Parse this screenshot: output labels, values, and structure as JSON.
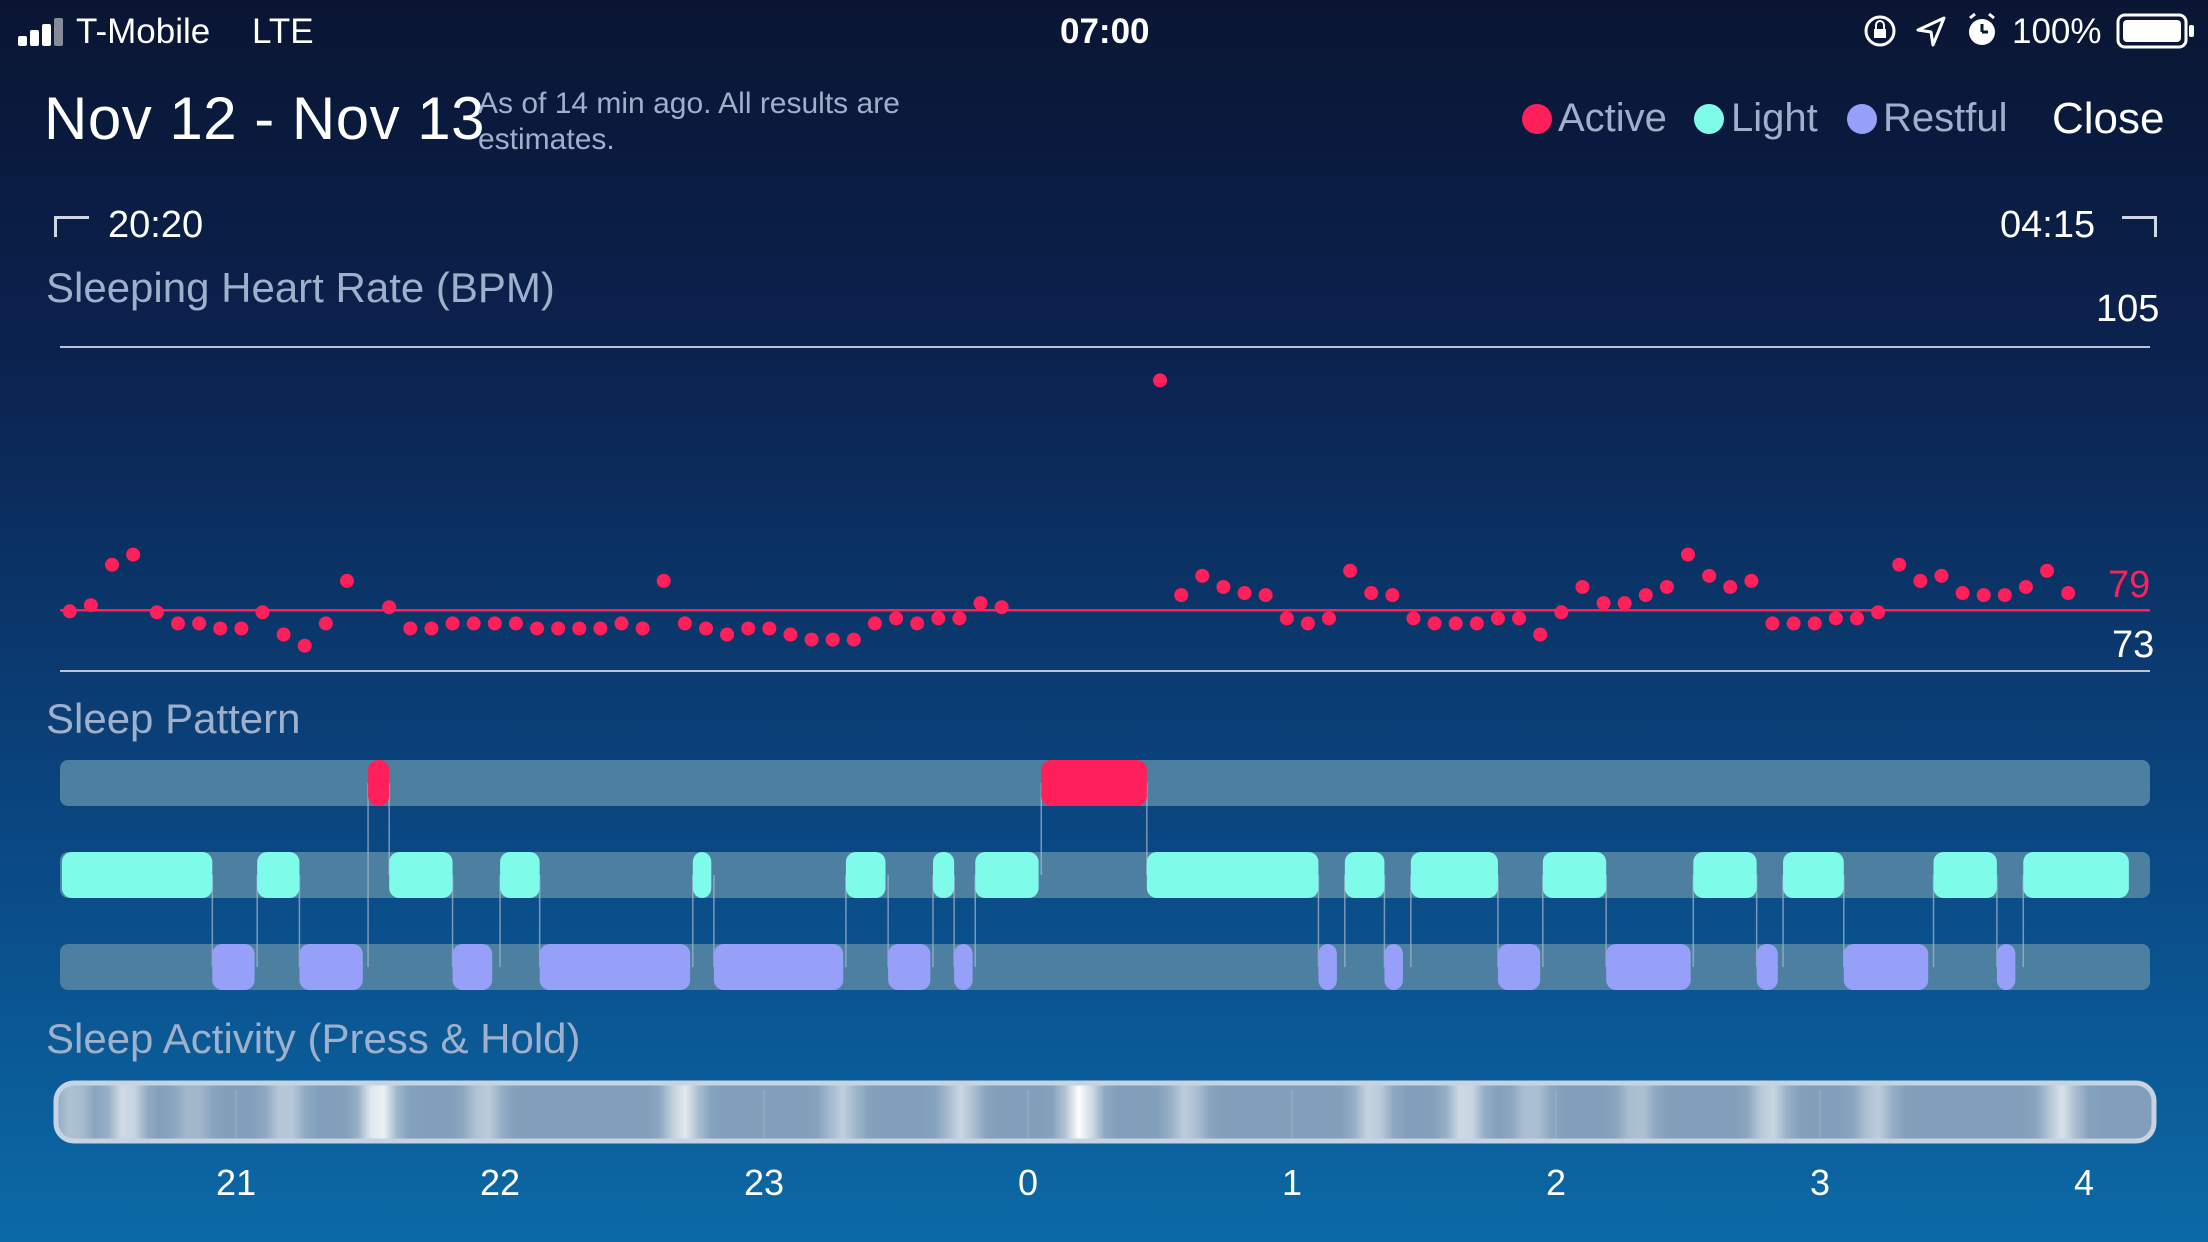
{
  "status_bar": {
    "carrier": "T-Mobile",
    "network": "LTE",
    "time": "07:00",
    "battery": "100%",
    "icons": [
      "signal-icon",
      "orientation-lock-icon",
      "location-icon",
      "alarm-icon",
      "battery-icon"
    ]
  },
  "header": {
    "title": "Nov 12 - Nov 13",
    "subtitle": "As of 14 min ago. All results are estimates.",
    "legend": [
      {
        "label": "Active",
        "color": "#ff1f5a"
      },
      {
        "label": "Light",
        "color": "#7ffbe9"
      },
      {
        "label": "Restful",
        "color": "#97a0f8"
      }
    ],
    "close_label": "Close"
  },
  "range": {
    "start": "20:20",
    "end": "04:15"
  },
  "heart_rate": {
    "title": "Sleeping Heart Rate (BPM)",
    "max_label": "105",
    "min_label": "73",
    "avg_label": "79"
  },
  "sleep_pattern": {
    "title": "Sleep Pattern"
  },
  "sleep_activity": {
    "title": "Sleep Activity (Press & Hold)"
  },
  "hours": [
    "21",
    "22",
    "23",
    "0",
    "1",
    "2",
    "3",
    "4"
  ],
  "colors": {
    "active": "#ff1f5a",
    "light": "#7ffbe9",
    "restful": "#97a0f8",
    "track": "#4d7fa0"
  },
  "chart_data": {
    "type": "scatter",
    "title": "Sleeping Heart Rate (BPM)",
    "x_unit": "hours",
    "xlim": [
      20.333,
      28.25
    ],
    "ylim": [
      73,
      105
    ],
    "avg": 79,
    "points": [
      [
        20.37,
        78.9
      ],
      [
        20.45,
        79.5
      ],
      [
        20.53,
        83.5
      ],
      [
        20.61,
        84.5
      ],
      [
        20.7,
        78.8
      ],
      [
        20.78,
        77.7
      ],
      [
        20.86,
        77.7
      ],
      [
        20.94,
        77.2
      ],
      [
        21.02,
        77.2
      ],
      [
        21.1,
        78.8
      ],
      [
        21.18,
        76.6
      ],
      [
        21.26,
        75.5
      ],
      [
        21.34,
        77.7
      ],
      [
        21.42,
        81.9
      ],
      [
        21.58,
        79.3
      ],
      [
        21.66,
        77.2
      ],
      [
        21.74,
        77.2
      ],
      [
        21.82,
        77.7
      ],
      [
        21.9,
        77.7
      ],
      [
        21.98,
        77.7
      ],
      [
        22.06,
        77.7
      ],
      [
        22.14,
        77.2
      ],
      [
        22.22,
        77.2
      ],
      [
        22.3,
        77.2
      ],
      [
        22.38,
        77.2
      ],
      [
        22.46,
        77.7
      ],
      [
        22.54,
        77.2
      ],
      [
        22.62,
        81.9
      ],
      [
        22.7,
        77.7
      ],
      [
        22.78,
        77.2
      ],
      [
        22.86,
        76.6
      ],
      [
        22.94,
        77.2
      ],
      [
        23.02,
        77.2
      ],
      [
        23.1,
        76.6
      ],
      [
        23.18,
        76.1
      ],
      [
        23.26,
        76.1
      ],
      [
        23.34,
        76.1
      ],
      [
        23.42,
        77.7
      ],
      [
        23.5,
        78.2
      ],
      [
        23.58,
        77.7
      ],
      [
        23.66,
        78.2
      ],
      [
        23.74,
        78.2
      ],
      [
        23.82,
        79.7
      ],
      [
        23.9,
        79.3
      ],
      [
        24.5,
        101.7
      ],
      [
        24.58,
        80.5
      ],
      [
        24.66,
        82.4
      ],
      [
        24.74,
        81.3
      ],
      [
        24.82,
        80.7
      ],
      [
        24.9,
        80.5
      ],
      [
        24.98,
        78.2
      ],
      [
        25.06,
        77.7
      ],
      [
        25.14,
        78.2
      ],
      [
        25.22,
        82.9
      ],
      [
        25.3,
        80.7
      ],
      [
        25.38,
        80.5
      ],
      [
        25.46,
        78.2
      ],
      [
        25.54,
        77.7
      ],
      [
        25.62,
        77.7
      ],
      [
        25.7,
        77.7
      ],
      [
        25.78,
        78.2
      ],
      [
        25.86,
        78.2
      ],
      [
        25.94,
        76.6
      ],
      [
        26.02,
        78.8
      ],
      [
        26.1,
        81.3
      ],
      [
        26.18,
        79.7
      ],
      [
        26.26,
        79.7
      ],
      [
        26.34,
        80.5
      ],
      [
        26.42,
        81.3
      ],
      [
        26.5,
        84.5
      ],
      [
        26.58,
        82.4
      ],
      [
        26.66,
        81.3
      ],
      [
        26.74,
        81.9
      ],
      [
        26.82,
        77.7
      ],
      [
        26.9,
        77.7
      ],
      [
        26.98,
        77.7
      ],
      [
        27.06,
        78.2
      ],
      [
        27.14,
        78.2
      ],
      [
        27.22,
        78.8
      ],
      [
        27.3,
        83.5
      ],
      [
        27.38,
        81.9
      ],
      [
        27.46,
        82.4
      ],
      [
        27.54,
        80.7
      ],
      [
        27.62,
        80.5
      ],
      [
        27.7,
        80.5
      ],
      [
        27.78,
        81.3
      ],
      [
        27.86,
        82.9
      ],
      [
        27.94,
        80.7
      ]
    ],
    "sleep_pattern": {
      "active": [
        [
          21.5,
          21.58
        ],
        [
          24.05,
          24.45
        ]
      ],
      "light": [
        [
          20.34,
          20.91
        ],
        [
          21.08,
          21.24
        ],
        [
          21.58,
          21.82
        ],
        [
          22.0,
          22.15
        ],
        [
          22.73,
          22.8
        ],
        [
          23.31,
          23.46
        ],
        [
          23.64,
          23.72
        ],
        [
          23.8,
          24.04
        ],
        [
          24.45,
          25.1
        ],
        [
          25.2,
          25.35
        ],
        [
          25.45,
          25.78
        ],
        [
          25.95,
          26.19
        ],
        [
          26.52,
          26.76
        ],
        [
          26.86,
          27.09
        ],
        [
          27.43,
          27.67
        ],
        [
          27.77,
          28.17
        ]
      ],
      "restful": [
        [
          20.91,
          21.07
        ],
        [
          21.24,
          21.48
        ],
        [
          21.82,
          21.97
        ],
        [
          22.15,
          22.72
        ],
        [
          22.81,
          23.3
        ],
        [
          23.47,
          23.63
        ],
        [
          23.72,
          23.79
        ],
        [
          25.1,
          25.17
        ],
        [
          25.35,
          25.42
        ],
        [
          25.78,
          25.94
        ],
        [
          26.19,
          26.51
        ],
        [
          26.76,
          26.84
        ],
        [
          27.09,
          27.41
        ],
        [
          27.67,
          27.74
        ]
      ]
    },
    "activity_intensity": [
      [
        20.4,
        0.4
      ],
      [
        20.6,
        0.7
      ],
      [
        20.85,
        0.3
      ],
      [
        21.2,
        0.5
      ],
      [
        21.55,
        0.95
      ],
      [
        21.95,
        0.5
      ],
      [
        22.7,
        0.8
      ],
      [
        23.3,
        0.5
      ],
      [
        23.75,
        0.6
      ],
      [
        24.2,
        1.0
      ],
      [
        24.6,
        0.5
      ],
      [
        25.3,
        0.6
      ],
      [
        25.65,
        0.7
      ],
      [
        25.9,
        0.4
      ],
      [
        26.3,
        0.4
      ],
      [
        26.8,
        0.6
      ],
      [
        27.2,
        0.5
      ],
      [
        27.9,
        0.7
      ]
    ]
  }
}
